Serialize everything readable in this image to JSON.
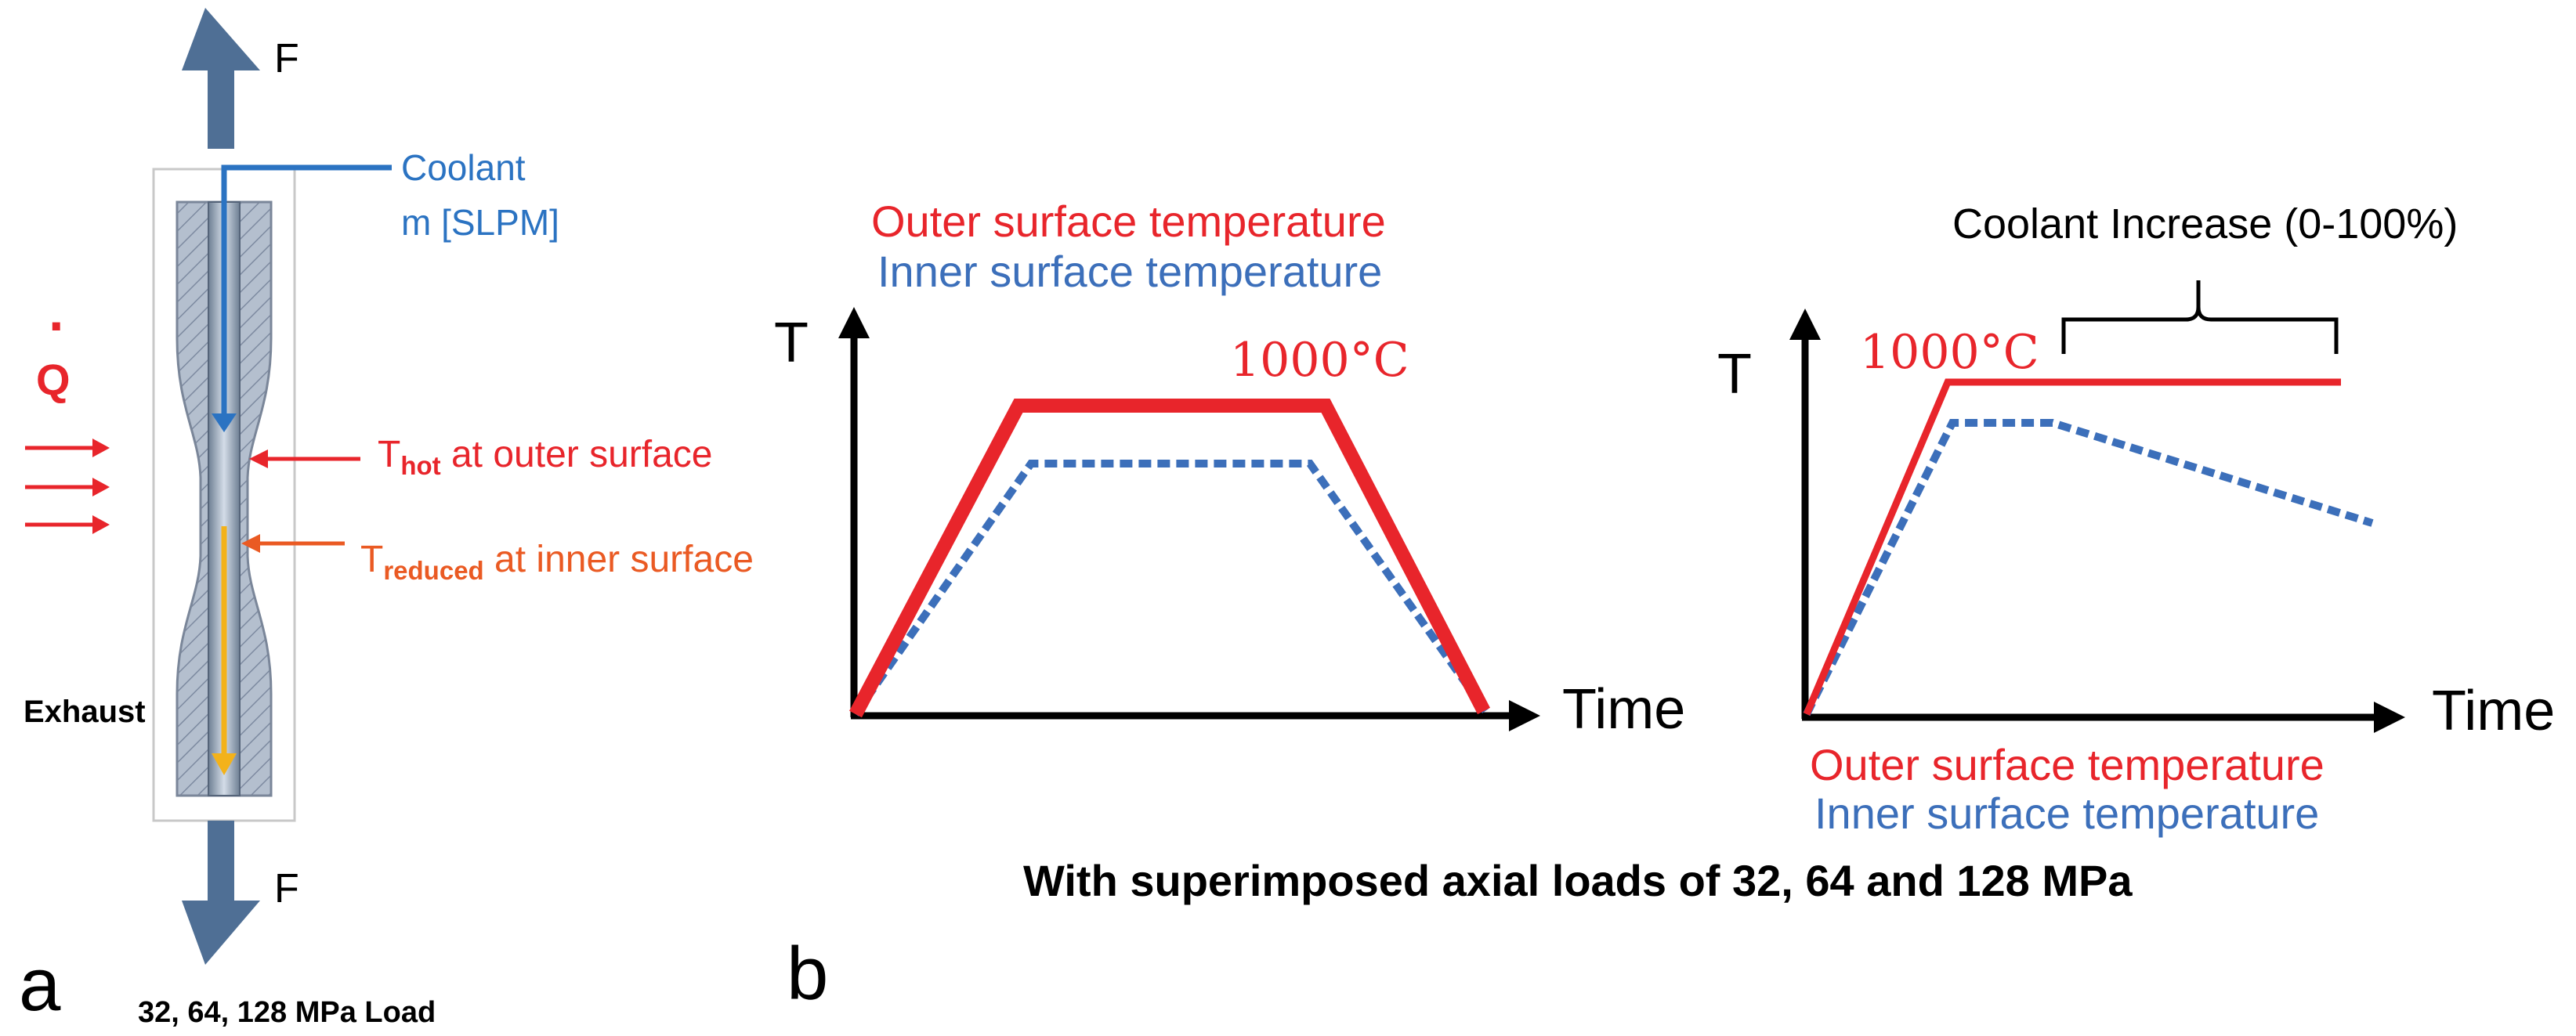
{
  "colors": {
    "red": "#e8252b",
    "blue": "#3c6fba",
    "orange": "#ea5a23",
    "arrow_steel": "#4f6f95",
    "coolant_blue": "#2b73c2",
    "exhaust_yellow": "#f3b21a",
    "text": "#000000"
  },
  "panel_a": {
    "label": "a",
    "force_top": "F",
    "force_bottom": "F",
    "coolant_line1": "Coolant",
    "coolant_line2": "m [SLPM]",
    "heat_symbol": "Q",
    "heat_dot": "·",
    "t_hot_main": "T",
    "t_hot_sub": "hot",
    "t_hot_rest": " at outer surface",
    "t_red_main": "T",
    "t_red_sub": "reduced",
    "t_red_rest": " at inner surface",
    "exhaust": "Exhaust",
    "load": "32, 64, 128 MPa Load"
  },
  "panel_b": {
    "label": "b",
    "left_chart": {
      "legend_outer": "Outer surface temperature",
      "legend_inner": "Inner surface temperature",
      "y_axis": "T",
      "x_axis": "Time",
      "peak_label": "1000°C"
    },
    "right_chart": {
      "y_axis": "T",
      "x_axis": "Time",
      "peak_label": "1000°C",
      "bracket_label": "Coolant Increase (0-100%)",
      "legend_outer": "Outer surface temperature",
      "legend_inner": "Inner surface temperature"
    },
    "caption": "With superimposed axial loads of 32, 64 and 128 MPa"
  }
}
